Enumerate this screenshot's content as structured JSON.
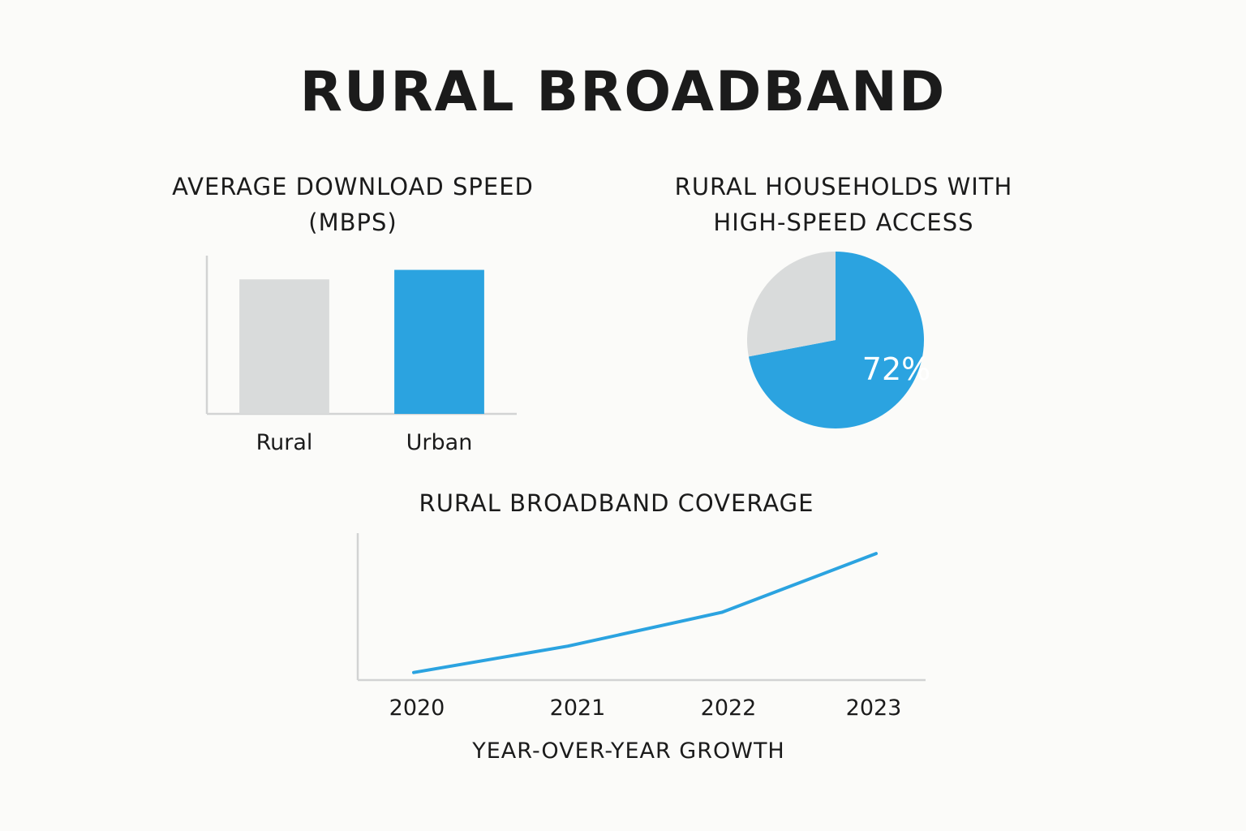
{
  "title": "RURAL BROADBAND",
  "colors": {
    "accent": "#2ba3e0",
    "muted": "#d9dbdb",
    "axis": "#d2d3d3",
    "text": "#1b1b1b",
    "background": "#fbfbf9"
  },
  "chart_data": [
    {
      "type": "bar",
      "title": "AVERAGE DOWNLOAD SPEED (MBPS)",
      "categories": [
        "Rural",
        "Urban"
      ],
      "values": [
        85,
        91
      ],
      "bar_colors": [
        "#d9dbdb",
        "#2ba3e0"
      ],
      "ylim": [
        0,
        100
      ],
      "grid": false
    },
    {
      "type": "pie",
      "title": "RURAL HOUSEHOLDS WITH HIGH-SPEED ACCESS",
      "slices": [
        {
          "value": 72,
          "color": "#2ba3e0",
          "label": "72%"
        },
        {
          "value": 28,
          "color": "#d9dbdb",
          "label": ""
        }
      ]
    },
    {
      "type": "line",
      "title": "RURAL BROADBAND COVERAGE",
      "xlabel": "YEAR-OVER-YEAR GROWTH",
      "x": [
        "2020",
        "2021",
        "2022",
        "2023"
      ],
      "series": [
        {
          "values": [
            10,
            45,
            90,
            168
          ],
          "color": "#2ba3e0"
        }
      ],
      "ylim": [
        0,
        195
      ],
      "grid": false
    }
  ]
}
